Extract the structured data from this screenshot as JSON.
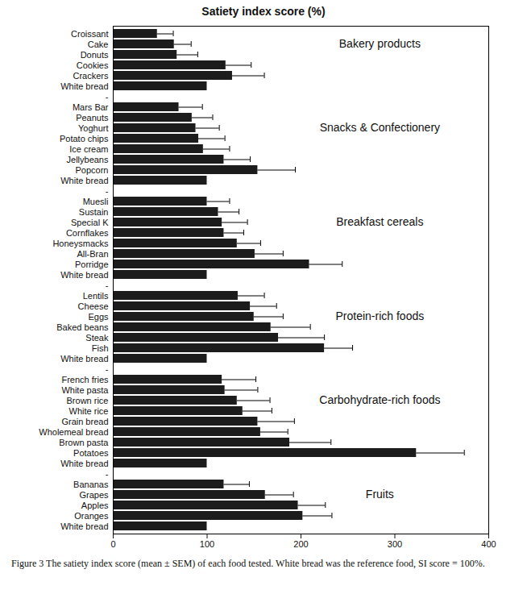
{
  "chart_data": {
    "type": "bar",
    "title": "Satiety index score (%)",
    "caption": "Figure 3 The satiety index score (mean ± SEM) of each food tested. White bread was the reference food, SI score = 100%.",
    "orientation": "horizontal",
    "color": "#1c1c1c",
    "annotations": [
      "Bakery products",
      "Snacks & Confectionery",
      "Breakfast cereals",
      "Protein-rich foods",
      "Carbohydrate-rich foods",
      "Fruits"
    ],
    "categories": [
      "Croissant",
      "Cake",
      "Donuts",
      "Cookies",
      "Crackers",
      "White bread",
      "-",
      "Mars Bar",
      "Peanuts",
      "Yoghurt",
      "Potato chips",
      "Ice cream",
      "Jellybeans",
      "Popcorn",
      "White bread",
      "-",
      "Muesli",
      "Sustain",
      "Special K",
      "Cornflakes",
      "Honeysmacks",
      "All-Bran",
      "Porridge",
      "White bread",
      "-",
      "Lentils",
      "Cheese",
      "Eggs",
      "Baked beans",
      "Steak",
      "Fish",
      "White bread",
      "-",
      "French fries",
      "White pasta",
      "Brown rice",
      "White rice",
      "Grain bread",
      "Wholemeal bread",
      "Brown pasta",
      "Potatoes",
      "White bread",
      "-",
      "Bananas",
      "Grapes",
      "Apples",
      "Oranges",
      "White bread"
    ],
    "values": [
      47,
      65,
      68,
      120,
      127,
      100,
      null,
      70,
      84,
      88,
      91,
      96,
      118,
      154,
      100,
      null,
      100,
      112,
      116,
      118,
      132,
      151,
      209,
      100,
      null,
      133,
      146,
      150,
      168,
      176,
      225,
      100,
      null,
      116,
      119,
      132,
      138,
      154,
      157,
      188,
      323,
      100,
      null,
      118,
      162,
      197,
      202,
      100
    ],
    "errors": [
      17,
      18,
      22,
      27,
      34,
      null,
      null,
      25,
      22,
      25,
      28,
      28,
      28,
      40,
      null,
      null,
      24,
      22,
      27,
      21,
      25,
      30,
      35,
      null,
      null,
      28,
      28,
      31,
      42,
      49,
      30,
      null,
      null,
      36,
      35,
      35,
      31,
      39,
      29,
      44,
      51,
      null,
      null,
      27,
      30,
      29,
      31,
      null
    ],
    "xlim": [
      0,
      400
    ],
    "xticks": [
      0,
      100,
      200,
      300,
      400
    ],
    "grid": false
  }
}
